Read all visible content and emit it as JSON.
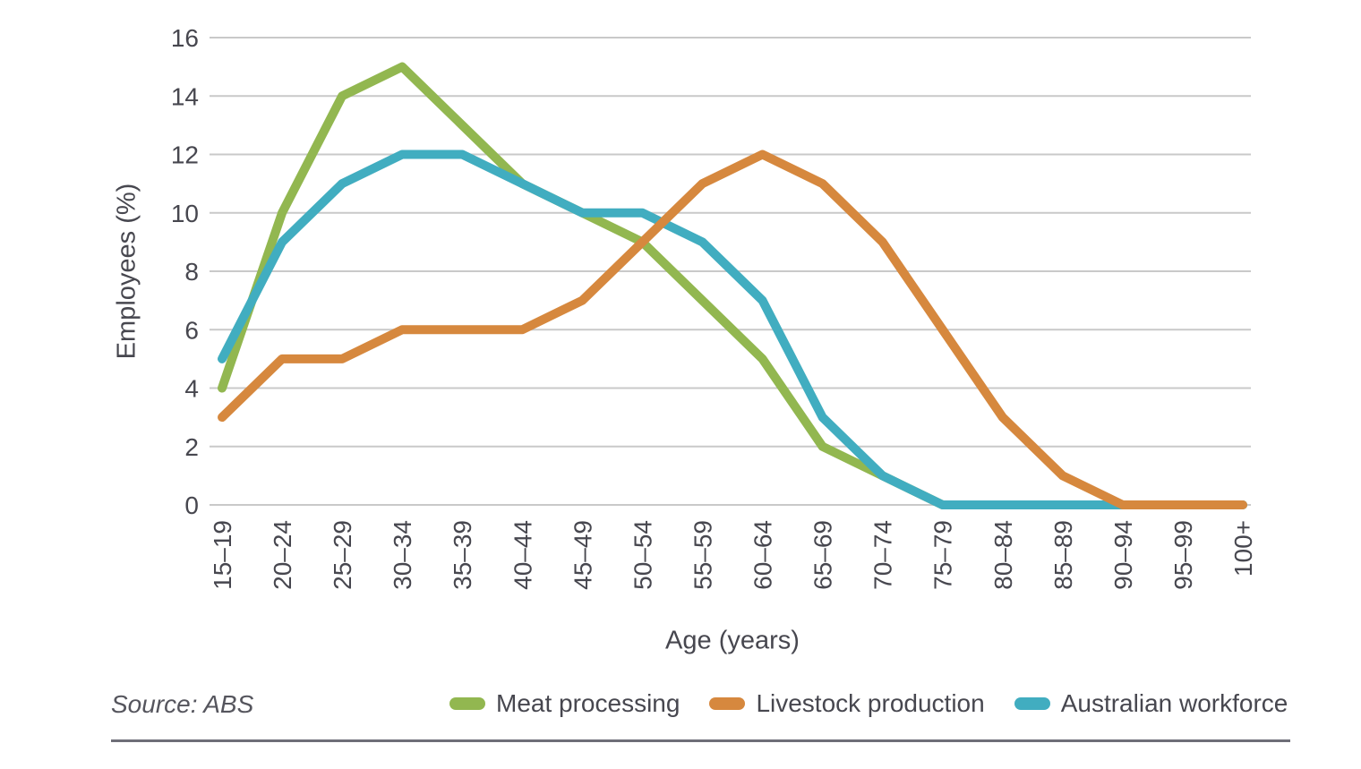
{
  "chart_data": {
    "type": "line",
    "title": "",
    "xlabel": "Age (years)",
    "ylabel": "Employees (%)",
    "ylim": [
      0,
      16
    ],
    "y_ticks": [
      0,
      2,
      4,
      6,
      8,
      10,
      12,
      14,
      16
    ],
    "grid": "horizontal-only",
    "legend_position": "bottom",
    "categories": [
      "15–19",
      "20–24",
      "25–29",
      "30–34",
      "35–39",
      "40–44",
      "45–49",
      "50–54",
      "55–59",
      "60–64",
      "65–69",
      "70–74",
      "75–79",
      "80–84",
      "85–89",
      "90–94",
      "95–99",
      "100+"
    ],
    "series": [
      {
        "name": "Meat processing",
        "color": "#92b750",
        "values": [
          4,
          10,
          14,
          15,
          13,
          11,
          10,
          9,
          7,
          5,
          2,
          1,
          0,
          0,
          0,
          0,
          0,
          0
        ]
      },
      {
        "name": "Livestock production",
        "color": "#d6883e",
        "values": [
          3,
          5,
          5,
          6,
          6,
          6,
          7,
          9,
          11,
          12,
          11,
          9,
          6,
          3,
          1,
          0,
          0,
          0
        ]
      },
      {
        "name": "Australian workforce",
        "color": "#41adc0",
        "values": [
          5,
          9,
          11,
          12,
          12,
          11,
          10,
          10,
          9,
          7,
          3,
          1,
          0,
          0,
          0,
          0,
          0,
          0
        ]
      }
    ],
    "draw_order": [
      "Meat processing",
      "Australian workforce",
      "Livestock production"
    ]
  },
  "legend": {
    "items": [
      {
        "label": "Meat processing",
        "series_index": 0
      },
      {
        "label": "Livestock production",
        "series_index": 1
      },
      {
        "label": "Australian workforce",
        "series_index": 2
      }
    ]
  },
  "source_note": "Source: ABS",
  "styles": {
    "text_color": "#47474f",
    "grid_color": "#c9c9c9",
    "rule_color": "#6e6e78",
    "line_width": 10
  }
}
